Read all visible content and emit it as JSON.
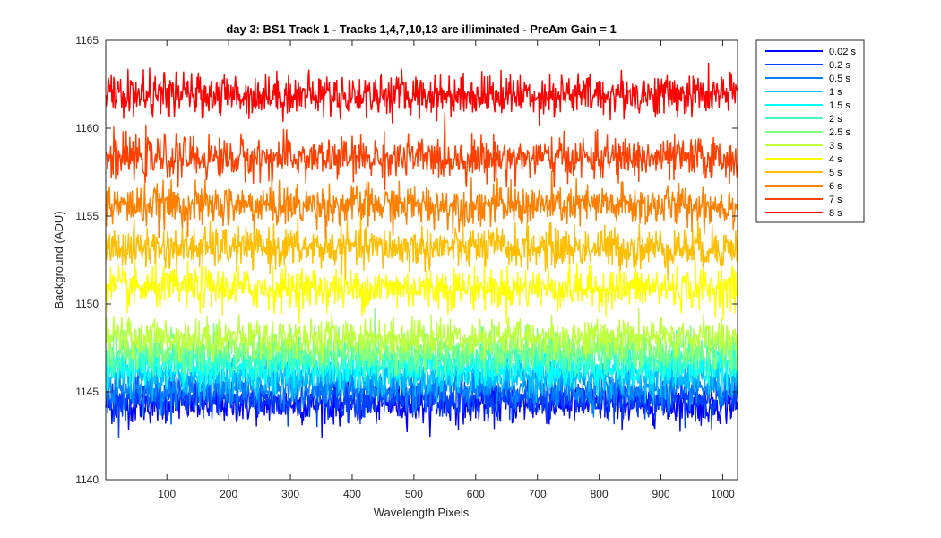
{
  "chart_data": {
    "type": "line",
    "title": "day 3: BS1  Track 1 - Tracks 1,4,7,10,13 are illiminated - PreAm Gain = 1",
    "xlabel": "Wavelength Pixels",
    "ylabel": "Background (ADU)",
    "xlim": [
      1,
      1024
    ],
    "ylim": [
      1140,
      1165
    ],
    "x_ticks": [
      100,
      200,
      300,
      400,
      500,
      600,
      700,
      800,
      900,
      1000
    ],
    "y_ticks": [
      1140,
      1145,
      1150,
      1155,
      1160,
      1165
    ],
    "legend_position": "outside-top-right",
    "series": [
      {
        "name": "0.02 s",
        "color": "#0000ff",
        "mean": 1144.3,
        "noise": 0.55
      },
      {
        "name": "0.2 s",
        "color": "#0040ff",
        "mean": 1144.6,
        "noise": 0.55
      },
      {
        "name": "0.5 s",
        "color": "#0080ff",
        "mean": 1145.2,
        "noise": 0.55
      },
      {
        "name": "1 s",
        "color": "#00bfff",
        "mean": 1145.9,
        "noise": 0.55
      },
      {
        "name": "1.5 s",
        "color": "#00ffff",
        "mean": 1146.4,
        "noise": 0.55
      },
      {
        "name": "2 s",
        "color": "#40ffbf",
        "mean": 1146.9,
        "noise": 0.55
      },
      {
        "name": "2.5 s",
        "color": "#80ff80",
        "mean": 1147.4,
        "noise": 0.55
      },
      {
        "name": "3 s",
        "color": "#bfff40",
        "mean": 1148.1,
        "noise": 0.55
      },
      {
        "name": "4 s",
        "color": "#ffff00",
        "mean": 1150.9,
        "noise": 0.6
      },
      {
        "name": "5 s",
        "color": "#ffbf00",
        "mean": 1153.2,
        "noise": 0.6
      },
      {
        "name": "6 s",
        "color": "#ff8000",
        "mean": 1155.6,
        "noise": 0.6
      },
      {
        "name": "7 s",
        "color": "#ff4000",
        "mean": 1158.3,
        "noise": 0.6
      },
      {
        "name": "8 s",
        "color": "#ff0000",
        "mean": 1161.9,
        "noise": 0.6
      }
    ]
  }
}
